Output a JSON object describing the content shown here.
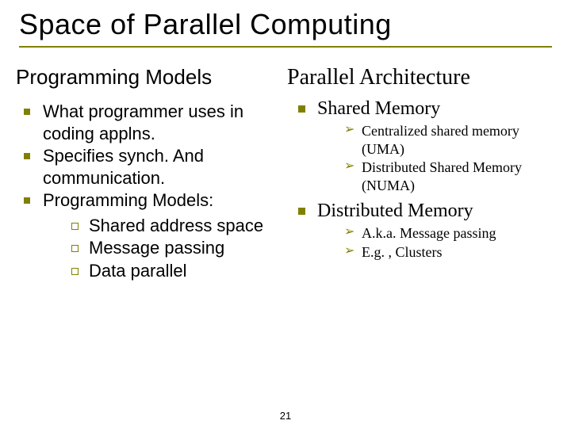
{
  "title": "Space of Parallel Computing",
  "slide_number": "21",
  "left": {
    "heading": "Programming Models",
    "items": [
      {
        "text": "What programmer uses in coding applns."
      },
      {
        "text": "Specifies synch. And communication."
      },
      {
        "text": "Programming Models:",
        "sub": [
          "Shared address space",
          "Message passing",
          "Data parallel"
        ]
      }
    ]
  },
  "right": {
    "heading": "Parallel Architecture",
    "items": [
      {
        "text": "Shared Memory",
        "sub": [
          "Centralized shared memory (UMA)",
          "Distributed Shared Memory (NUMA)"
        ]
      },
      {
        "text": "Distributed Memory",
        "sub": [
          "A.k.a. Message passing",
          "E.g. , Clusters"
        ]
      }
    ]
  },
  "colors": {
    "accent": "#808000",
    "text": "#000000",
    "background": "#ffffff"
  },
  "fonts": {
    "title_family": "Arial",
    "left_family": "Arial",
    "right_family": "Comic Sans MS",
    "title_size_pt": 36,
    "heading_left_size_pt": 26,
    "heading_right_size_pt": 28,
    "body_left_size_pt": 22,
    "body_right_l1_size_pt": 24,
    "body_right_l2_size_pt": 18
  }
}
